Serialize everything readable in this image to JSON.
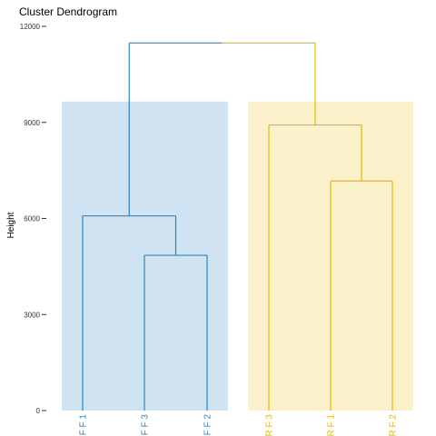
{
  "chart_data": {
    "type": "dendrogram",
    "title": "Cluster Dendrogram",
    "ylabel": "Height",
    "ylim": [
      0,
      12000
    ],
    "yticks": [
      0,
      3000,
      6000,
      9000,
      12000
    ],
    "leaves": [
      "FF1",
      "FF3",
      "FF2",
      "RF3",
      "RF1",
      "RF2"
    ],
    "merges": [
      {
        "left": "FF3",
        "right": "FF2",
        "height": 4850,
        "cluster": 0
      },
      {
        "left": "FF1",
        "right": "FF3+FF2",
        "height": 6080,
        "cluster": 0
      },
      {
        "left": "RF1",
        "right": "RF2",
        "height": 7170,
        "cluster": 1
      },
      {
        "left": "RF3",
        "right": "RF1+RF2",
        "height": 8920,
        "cluster": 1
      },
      {
        "left": "FF cluster",
        "right": "RF cluster",
        "height": 11480,
        "cluster": -1
      }
    ],
    "clusters": [
      {
        "leaves": [
          "FF1",
          "FF3",
          "FF2"
        ],
        "color": "#2E86C1",
        "fill": "#CFE3F3"
      },
      {
        "leaves": [
          "RF3",
          "RF1",
          "RF2"
        ],
        "color": "#E7B800",
        "fill": "#FBF1CB"
      }
    ],
    "rect_top": 9650
  }
}
